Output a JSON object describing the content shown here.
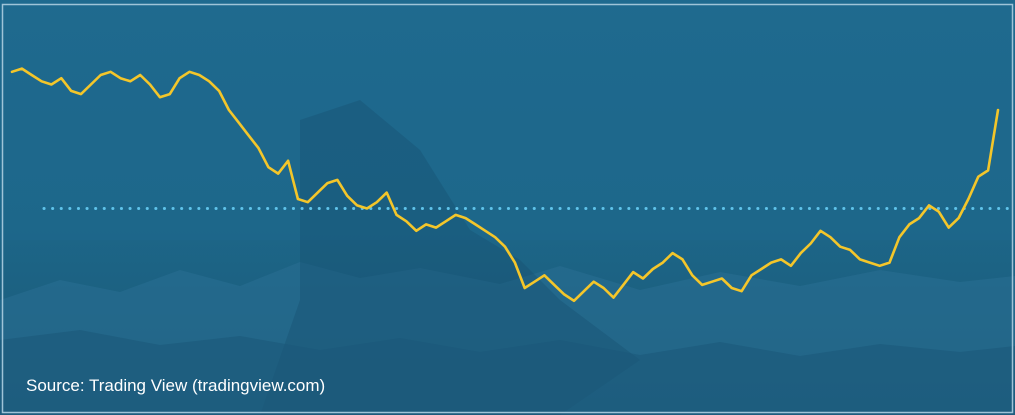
{
  "source_text": "Source: Trading View (tradingview.com)",
  "colors": {
    "background": "#1d6688",
    "line": "#f4c62a",
    "reference_line": "#5fc3ea",
    "border": "#9fc4d8",
    "text": "#ffffff"
  },
  "chart_data": {
    "type": "line",
    "title": "",
    "xlabel": "",
    "ylabel": "",
    "grid": false,
    "legend": "none",
    "ylim": [
      0,
      100
    ],
    "reference_line": {
      "y": 47,
      "style": "dotted"
    },
    "series": [
      {
        "x": [
          0,
          1,
          2,
          3,
          4,
          5,
          6,
          7,
          8,
          9,
          10,
          11,
          12,
          13,
          14,
          15,
          16,
          17,
          18,
          19,
          20,
          21,
          22,
          23,
          24,
          25,
          26,
          27,
          28,
          29,
          30,
          31,
          32,
          33,
          34,
          35,
          36,
          37,
          38,
          39,
          40,
          41,
          42,
          43,
          44,
          45,
          46,
          47,
          48,
          49,
          50,
          51,
          52,
          53,
          54,
          55,
          56,
          57,
          58,
          59,
          60,
          61,
          62,
          63,
          64,
          65,
          66,
          67,
          68,
          69,
          70,
          71,
          72,
          73,
          74,
          75,
          76,
          77,
          78,
          79,
          80,
          81,
          82,
          83,
          84,
          85,
          86,
          87,
          88,
          89,
          90,
          91,
          92,
          93,
          94,
          95,
          96,
          97,
          98,
          99,
          100
        ],
        "y": [
          90,
          91,
          89,
          87,
          86,
          88,
          84,
          83,
          86,
          89,
          90,
          88,
          87,
          89,
          86,
          82,
          83,
          88,
          90,
          89,
          87,
          84,
          78,
          74,
          70,
          66,
          60,
          58,
          62,
          50,
          49,
          52,
          55,
          56,
          51,
          48,
          47,
          49,
          52,
          45,
          43,
          40,
          42,
          41,
          43,
          45,
          44,
          42,
          40,
          38,
          35,
          30,
          22,
          24,
          26,
          23,
          20,
          18,
          21,
          24,
          22,
          19,
          23,
          27,
          25,
          28,
          30,
          33,
          31,
          26,
          23,
          24,
          25,
          22,
          21,
          26,
          28,
          30,
          31,
          29,
          33,
          36,
          40,
          38,
          35,
          34,
          31,
          30,
          29,
          30,
          38,
          42,
          44,
          48,
          46,
          41,
          44,
          50,
          57,
          59,
          78
        ]
      }
    ]
  }
}
